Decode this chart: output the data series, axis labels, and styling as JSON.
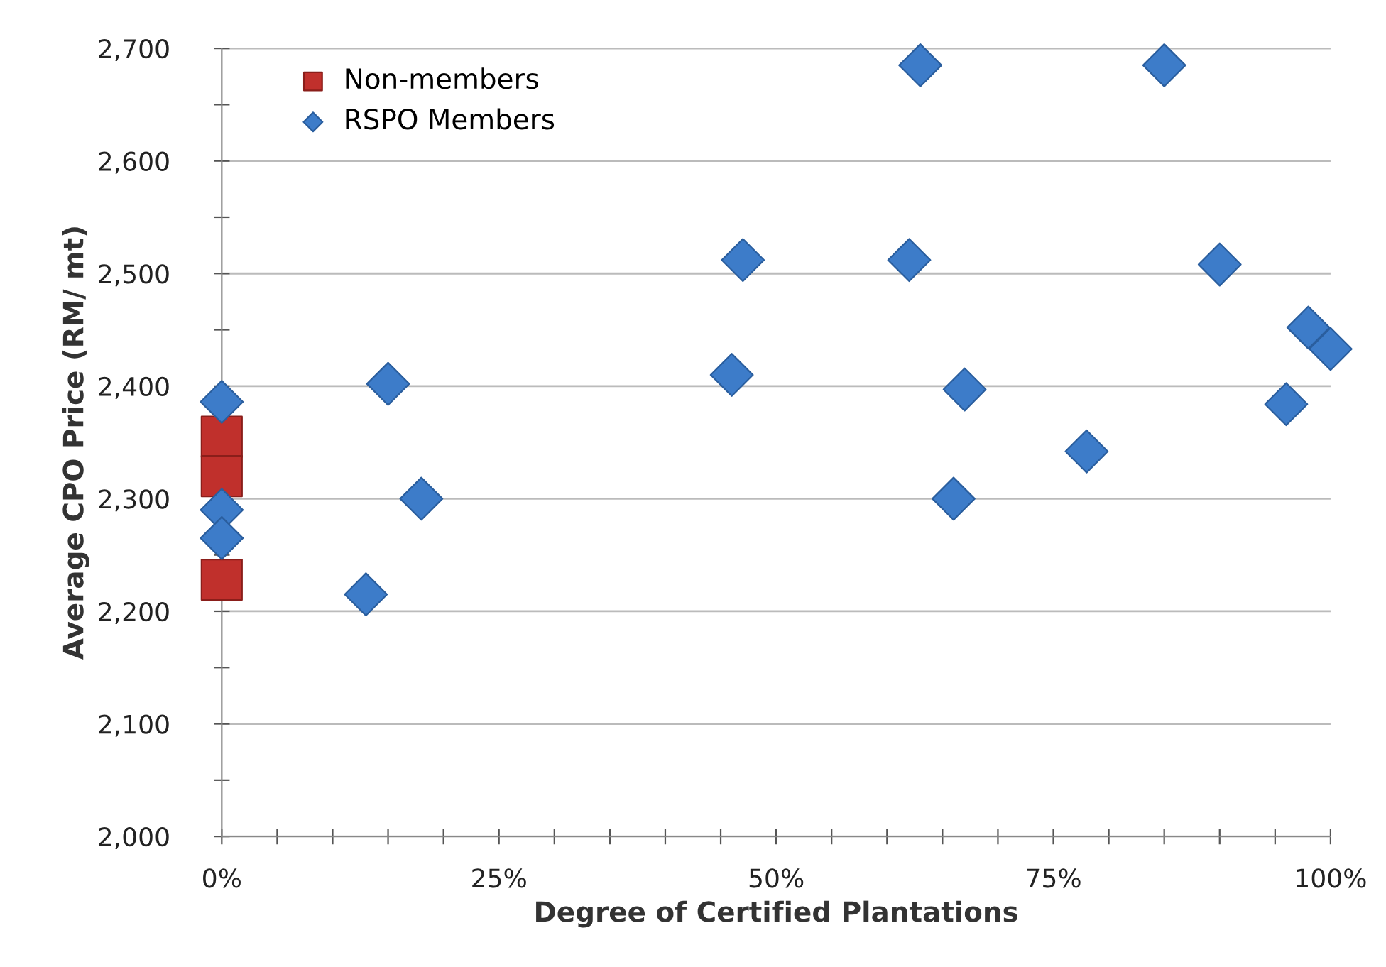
{
  "chart_data": {
    "type": "scatter",
    "xlabel": "Degree of Certified Plantations",
    "ylabel": "Average CPO Price (RM/ mt)",
    "xlim": [
      0,
      100
    ],
    "ylim": [
      2000,
      2700
    ],
    "xticks": [
      {
        "value": 0,
        "label": "0%"
      },
      {
        "value": 5,
        "label": null
      },
      {
        "value": 10,
        "label": null
      },
      {
        "value": 15,
        "label": null
      },
      {
        "value": 20,
        "label": null
      },
      {
        "value": 25,
        "label": "25%"
      },
      {
        "value": 30,
        "label": null
      },
      {
        "value": 35,
        "label": null
      },
      {
        "value": 40,
        "label": null
      },
      {
        "value": 45,
        "label": null
      },
      {
        "value": 50,
        "label": "50%"
      },
      {
        "value": 55,
        "label": null
      },
      {
        "value": 60,
        "label": null
      },
      {
        "value": 65,
        "label": null
      },
      {
        "value": 70,
        "label": null
      },
      {
        "value": 75,
        "label": "75%"
      },
      {
        "value": 80,
        "label": null
      },
      {
        "value": 85,
        "label": null
      },
      {
        "value": 90,
        "label": null
      },
      {
        "value": 95,
        "label": null
      },
      {
        "value": 100,
        "label": "100%"
      }
    ],
    "yticks": [
      {
        "value": 2000,
        "label": "2,000"
      },
      {
        "value": 2050,
        "label": null
      },
      {
        "value": 2100,
        "label": "2,100"
      },
      {
        "value": 2150,
        "label": null
      },
      {
        "value": 2200,
        "label": "2,200"
      },
      {
        "value": 2250,
        "label": null
      },
      {
        "value": 2300,
        "label": "2,300"
      },
      {
        "value": 2350,
        "label": null
      },
      {
        "value": 2400,
        "label": "2,400"
      },
      {
        "value": 2450,
        "label": null
      },
      {
        "value": 2500,
        "label": "2,500"
      },
      {
        "value": 2550,
        "label": null
      },
      {
        "value": 2600,
        "label": "2,600"
      },
      {
        "value": 2650,
        "label": null
      },
      {
        "value": 2700,
        "label": "2,700"
      }
    ],
    "grid": "y",
    "legend": "top left",
    "series": [
      {
        "name": "Non-members",
        "color": "#c0302c",
        "marker": "square",
        "x": [
          0,
          0,
          0
        ],
        "values": [
          2355,
          2320,
          2228
        ]
      },
      {
        "name": "RSPO Members",
        "color": "#3d7cc9",
        "marker": "diamond",
        "x": [
          0,
          0,
          0,
          13,
          15,
          18,
          46,
          47,
          62,
          63,
          66,
          67,
          78,
          85,
          90,
          96,
          98,
          100
        ],
        "values": [
          2386,
          2290,
          2265,
          2215,
          2402,
          2300,
          2410,
          2512,
          2512,
          2685,
          2300,
          2397,
          2342,
          2685,
          2508,
          2384,
          2452,
          2433
        ]
      }
    ]
  }
}
